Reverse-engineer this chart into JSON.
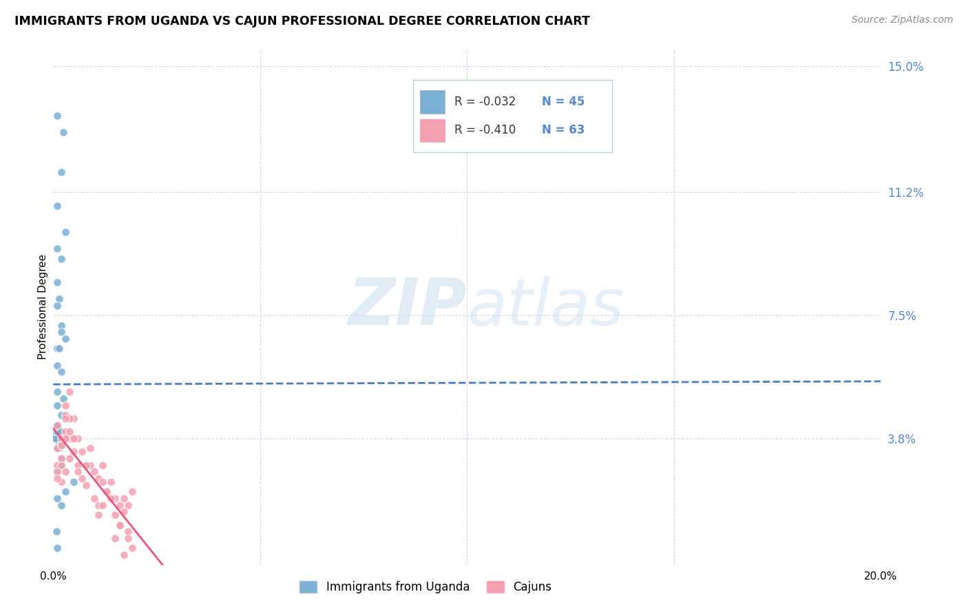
{
  "title": "IMMIGRANTS FROM UGANDA VS CAJUN PROFESSIONAL DEGREE CORRELATION CHART",
  "source": "Source: ZipAtlas.com",
  "ylabel": "Professional Degree",
  "x_min": 0.0,
  "x_max": 0.2,
  "y_min": 0.0,
  "y_max": 0.155,
  "y_tick_labels_right": [
    "15.0%",
    "11.2%",
    "7.5%",
    "3.8%"
  ],
  "y_tick_vals_right": [
    0.15,
    0.112,
    0.075,
    0.038
  ],
  "legend_r1": "-0.032",
  "legend_n1": "45",
  "legend_r2": "-0.410",
  "legend_n2": "63",
  "color_uganda": "#7BAFD4",
  "color_cajun": "#F4A0B0",
  "color_trend_uganda": "#4A7CC0",
  "color_trend_cajun": "#E8557A",
  "color_right_axis": "#5588CC",
  "watermark_zip": "ZIP",
  "watermark_atlas": "atlas",
  "uganda_x": [
    0.001,
    0.002,
    0.0025,
    0.001,
    0.003,
    0.001,
    0.002,
    0.001,
    0.0015,
    0.001,
    0.002,
    0.003,
    0.001,
    0.002,
    0.001,
    0.002,
    0.001,
    0.0015,
    0.001,
    0.0025,
    0.002,
    0.001,
    0.0005,
    0.001,
    0.003,
    0.002,
    0.001,
    0.0008,
    0.0012,
    0.0015,
    0.002,
    0.0005,
    0.001,
    0.0018,
    0.004,
    0.001,
    0.002,
    0.005,
    0.003,
    0.002,
    0.001,
    0.0008,
    0.001,
    0.002,
    0.001
  ],
  "uganda_y": [
    0.135,
    0.118,
    0.13,
    0.108,
    0.1,
    0.095,
    0.092,
    0.085,
    0.08,
    0.078,
    0.072,
    0.068,
    0.06,
    0.058,
    0.052,
    0.07,
    0.065,
    0.065,
    0.048,
    0.05,
    0.045,
    0.042,
    0.04,
    0.038,
    0.038,
    0.04,
    0.042,
    0.038,
    0.036,
    0.035,
    0.038,
    0.038,
    0.04,
    0.04,
    0.038,
    0.035,
    0.032,
    0.025,
    0.022,
    0.03,
    0.028,
    0.01,
    0.02,
    0.018,
    0.005
  ],
  "cajun_x": [
    0.001,
    0.002,
    0.001,
    0.003,
    0.002,
    0.003,
    0.004,
    0.005,
    0.003,
    0.002,
    0.001,
    0.002,
    0.003,
    0.001,
    0.002,
    0.004,
    0.003,
    0.005,
    0.006,
    0.004,
    0.002,
    0.003,
    0.001,
    0.004,
    0.005,
    0.006,
    0.007,
    0.008,
    0.006,
    0.005,
    0.004,
    0.003,
    0.007,
    0.008,
    0.009,
    0.01,
    0.011,
    0.009,
    0.008,
    0.01,
    0.012,
    0.013,
    0.011,
    0.014,
    0.015,
    0.012,
    0.013,
    0.016,
    0.017,
    0.015,
    0.018,
    0.016,
    0.019,
    0.017,
    0.018,
    0.015,
    0.016,
    0.014,
    0.012,
    0.011,
    0.019,
    0.018,
    0.017
  ],
  "cajun_y": [
    0.042,
    0.038,
    0.035,
    0.045,
    0.036,
    0.04,
    0.038,
    0.044,
    0.038,
    0.036,
    0.03,
    0.032,
    0.048,
    0.028,
    0.025,
    0.052,
    0.038,
    0.034,
    0.038,
    0.044,
    0.03,
    0.028,
    0.026,
    0.032,
    0.038,
    0.03,
    0.034,
    0.03,
    0.028,
    0.038,
    0.04,
    0.044,
    0.026,
    0.024,
    0.03,
    0.028,
    0.026,
    0.035,
    0.03,
    0.02,
    0.025,
    0.022,
    0.018,
    0.025,
    0.02,
    0.03,
    0.022,
    0.018,
    0.02,
    0.015,
    0.018,
    0.012,
    0.022,
    0.016,
    0.01,
    0.008,
    0.012,
    0.02,
    0.018,
    0.015,
    0.005,
    0.008,
    0.003
  ]
}
